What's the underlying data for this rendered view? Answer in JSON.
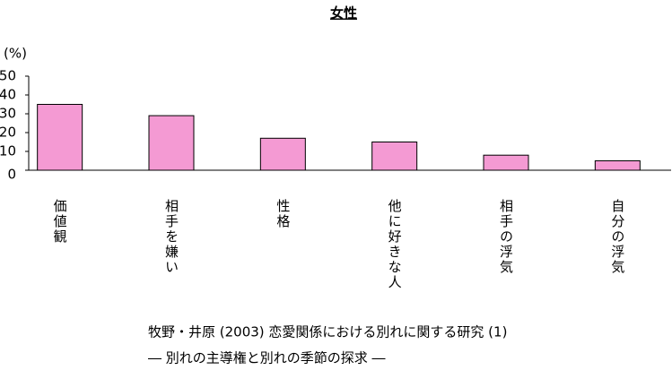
{
  "chart_data": {
    "type": "bar",
    "title": "女性",
    "y_label": "(%)",
    "categories": [
      "価値観",
      "相手を嫌い",
      "性格",
      "他に好きな人",
      "相手の浮気",
      "自分の浮気"
    ],
    "values": [
      35,
      29,
      17,
      15,
      8,
      5
    ],
    "color": "#f49ad3",
    "ylim": [
      0,
      50
    ],
    "yticks": [
      0,
      10,
      20,
      30,
      40,
      50
    ],
    "grid": false,
    "notes": [
      "牧野・井原 (2003) 恋愛関係における別れに関する研究 (1)",
      "― 別れの主導権と別れの季節の探求 ―"
    ]
  }
}
